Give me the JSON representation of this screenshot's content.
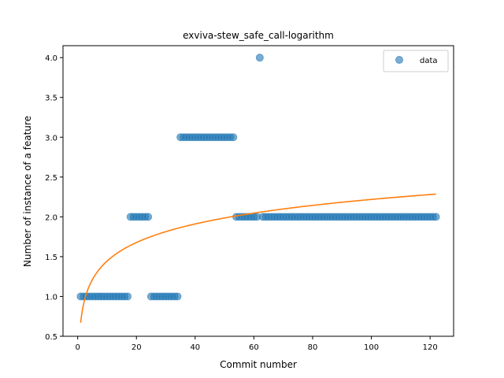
{
  "chart_data": {
    "type": "scatter",
    "title": "exviva-stew_safe_call-logarithm",
    "xlabel": "Commit number",
    "ylabel": "Number of instance of a feature",
    "xlim": [
      -5,
      128
    ],
    "ylim": [
      0.5,
      4.15
    ],
    "x_ticks": [
      0,
      20,
      40,
      60,
      80,
      100,
      120
    ],
    "y_ticks": [
      0.5,
      1.0,
      1.5,
      2.0,
      2.5,
      3.0,
      3.5,
      4.0
    ],
    "grid": false,
    "legend_position": "top-right",
    "series": [
      {
        "name": "data",
        "kind": "scatter",
        "color": "#1f77b4",
        "opacity": 0.6,
        "points": [
          [
            1,
            1
          ],
          [
            2,
            1
          ],
          [
            3,
            1
          ],
          [
            4,
            1
          ],
          [
            5,
            1
          ],
          [
            6,
            1
          ],
          [
            7,
            1
          ],
          [
            8,
            1
          ],
          [
            9,
            1
          ],
          [
            10,
            1
          ],
          [
            11,
            1
          ],
          [
            12,
            1
          ],
          [
            13,
            1
          ],
          [
            14,
            1
          ],
          [
            15,
            1
          ],
          [
            16,
            1
          ],
          [
            17,
            1
          ],
          [
            18,
            2
          ],
          [
            19,
            2
          ],
          [
            20,
            2
          ],
          [
            21,
            2
          ],
          [
            22,
            2
          ],
          [
            23,
            2
          ],
          [
            24,
            2
          ],
          [
            25,
            1
          ],
          [
            26,
            1
          ],
          [
            27,
            1
          ],
          [
            28,
            1
          ],
          [
            29,
            1
          ],
          [
            30,
            1
          ],
          [
            31,
            1
          ],
          [
            32,
            1
          ],
          [
            33,
            1
          ],
          [
            34,
            1
          ],
          [
            35,
            3
          ],
          [
            36,
            3
          ],
          [
            37,
            3
          ],
          [
            38,
            3
          ],
          [
            39,
            3
          ],
          [
            40,
            3
          ],
          [
            41,
            3
          ],
          [
            42,
            3
          ],
          [
            43,
            3
          ],
          [
            44,
            3
          ],
          [
            45,
            3
          ],
          [
            46,
            3
          ],
          [
            47,
            3
          ],
          [
            48,
            3
          ],
          [
            49,
            3
          ],
          [
            50,
            3
          ],
          [
            51,
            3
          ],
          [
            52,
            3
          ],
          [
            53,
            3
          ],
          [
            54,
            2
          ],
          [
            55,
            2
          ],
          [
            56,
            2
          ],
          [
            57,
            2
          ],
          [
            58,
            2
          ],
          [
            59,
            2
          ],
          [
            60,
            2
          ],
          [
            61,
            2
          ],
          [
            62,
            4
          ],
          [
            63,
            2
          ],
          [
            64,
            2
          ],
          [
            65,
            2
          ],
          [
            66,
            2
          ],
          [
            67,
            2
          ],
          [
            68,
            2
          ],
          [
            69,
            2
          ],
          [
            70,
            2
          ],
          [
            71,
            2
          ],
          [
            72,
            2
          ],
          [
            73,
            2
          ],
          [
            74,
            2
          ],
          [
            75,
            2
          ],
          [
            76,
            2
          ],
          [
            77,
            2
          ],
          [
            78,
            2
          ],
          [
            79,
            2
          ],
          [
            80,
            2
          ],
          [
            81,
            2
          ],
          [
            82,
            2
          ],
          [
            83,
            2
          ],
          [
            84,
            2
          ],
          [
            85,
            2
          ],
          [
            86,
            2
          ],
          [
            87,
            2
          ],
          [
            88,
            2
          ],
          [
            89,
            2
          ],
          [
            90,
            2
          ],
          [
            91,
            2
          ],
          [
            92,
            2
          ],
          [
            93,
            2
          ],
          [
            94,
            2
          ],
          [
            95,
            2
          ],
          [
            96,
            2
          ],
          [
            97,
            2
          ],
          [
            98,
            2
          ],
          [
            99,
            2
          ],
          [
            100,
            2
          ],
          [
            101,
            2
          ],
          [
            102,
            2
          ],
          [
            103,
            2
          ],
          [
            104,
            2
          ],
          [
            105,
            2
          ],
          [
            106,
            2
          ],
          [
            107,
            2
          ],
          [
            108,
            2
          ],
          [
            109,
            2
          ],
          [
            110,
            2
          ],
          [
            111,
            2
          ],
          [
            112,
            2
          ],
          [
            113,
            2
          ],
          [
            114,
            2
          ],
          [
            115,
            2
          ],
          [
            116,
            2
          ],
          [
            117,
            2
          ],
          [
            118,
            2
          ],
          [
            119,
            2
          ],
          [
            120,
            2
          ],
          [
            121,
            2
          ],
          [
            122,
            2
          ]
        ]
      },
      {
        "kind": "line",
        "color": "#ff7f0e",
        "fit": "logarithmic",
        "coefficients": {
          "a": 0.67,
          "b": 0.3363
        },
        "x_range": [
          1,
          122
        ]
      }
    ]
  }
}
